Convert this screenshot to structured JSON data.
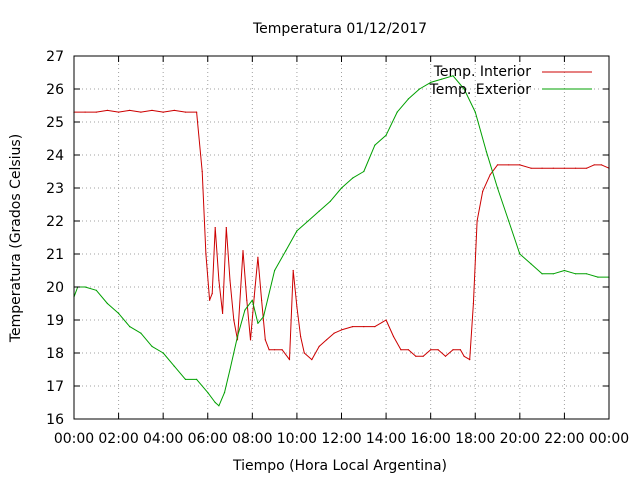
{
  "chart_data": {
    "type": "line",
    "title": "Temperatura 01/12/2017",
    "xlabel": "Tiempo (Hora Local Argentina)",
    "ylabel": "Temperatura (Grados Celsius)",
    "xlim": [
      "00:00",
      "24:00"
    ],
    "ylim": [
      16,
      27
    ],
    "x_tick_labels": [
      "00:00",
      "02:00",
      "04:00",
      "06:00",
      "08:00",
      "10:00",
      "12:00",
      "14:00",
      "16:00",
      "18:00",
      "20:00",
      "22:00",
      "00:00"
    ],
    "y_tick_labels": [
      "16",
      "17",
      "18",
      "19",
      "20",
      "21",
      "22",
      "23",
      "24",
      "25",
      "26",
      "27"
    ],
    "grid": true,
    "legend_position": "top-right",
    "colors": {
      "interior": "#cc0000",
      "exterior": "#00a000",
      "grid": "#a0a0a0"
    },
    "series": [
      {
        "name": "Temp. Interior",
        "points": [
          [
            "00:00",
            25.3
          ],
          [
            "00:30",
            25.3
          ],
          [
            "01:00",
            25.3
          ],
          [
            "01:30",
            25.35
          ],
          [
            "02:00",
            25.3
          ],
          [
            "02:30",
            25.35
          ],
          [
            "03:00",
            25.3
          ],
          [
            "03:30",
            25.35
          ],
          [
            "04:00",
            25.3
          ],
          [
            "04:30",
            25.35
          ],
          [
            "05:00",
            25.3
          ],
          [
            "05:30",
            25.3
          ],
          [
            "05:45",
            23.5
          ],
          [
            "05:55",
            21.0
          ],
          [
            "06:05",
            19.6
          ],
          [
            "06:12",
            19.8
          ],
          [
            "06:20",
            21.8
          ],
          [
            "06:30",
            20.2
          ],
          [
            "06:40",
            19.2
          ],
          [
            "06:50",
            21.8
          ],
          [
            "07:00",
            20.2
          ],
          [
            "07:10",
            19.0
          ],
          [
            "07:20",
            18.4
          ],
          [
            "07:35",
            21.1
          ],
          [
            "07:45",
            19.6
          ],
          [
            "07:55",
            18.4
          ],
          [
            "08:05",
            19.7
          ],
          [
            "08:15",
            20.9
          ],
          [
            "08:25",
            19.6
          ],
          [
            "08:35",
            18.4
          ],
          [
            "08:45",
            18.1
          ],
          [
            "09:00",
            18.1
          ],
          [
            "09:20",
            18.1
          ],
          [
            "09:40",
            17.8
          ],
          [
            "09:50",
            20.5
          ],
          [
            "10:00",
            19.4
          ],
          [
            "10:10",
            18.5
          ],
          [
            "10:20",
            18.0
          ],
          [
            "10:40",
            17.8
          ],
          [
            "11:00",
            18.2
          ],
          [
            "11:20",
            18.4
          ],
          [
            "11:40",
            18.6
          ],
          [
            "12:00",
            18.7
          ],
          [
            "12:30",
            18.8
          ],
          [
            "13:00",
            18.8
          ],
          [
            "13:30",
            18.8
          ],
          [
            "14:00",
            19.0
          ],
          [
            "14:20",
            18.5
          ],
          [
            "14:40",
            18.1
          ],
          [
            "15:00",
            18.1
          ],
          [
            "15:20",
            17.9
          ],
          [
            "15:40",
            17.9
          ],
          [
            "16:00",
            18.1
          ],
          [
            "16:20",
            18.1
          ],
          [
            "16:40",
            17.9
          ],
          [
            "17:00",
            18.1
          ],
          [
            "17:20",
            18.1
          ],
          [
            "17:30",
            17.9
          ],
          [
            "17:45",
            17.8
          ],
          [
            "17:55",
            19.5
          ],
          [
            "18:05",
            22.0
          ],
          [
            "18:20",
            22.9
          ],
          [
            "18:40",
            23.4
          ],
          [
            "19:00",
            23.7
          ],
          [
            "19:30",
            23.7
          ],
          [
            "20:00",
            23.7
          ],
          [
            "20:30",
            23.6
          ],
          [
            "21:00",
            23.6
          ],
          [
            "21:30",
            23.6
          ],
          [
            "22:00",
            23.6
          ],
          [
            "22:30",
            23.6
          ],
          [
            "23:00",
            23.6
          ],
          [
            "23:20",
            23.7
          ],
          [
            "23:40",
            23.7
          ],
          [
            "24:00",
            23.6
          ]
        ]
      },
      {
        "name": "Temp. Exterior",
        "points": [
          [
            "00:00",
            19.7
          ],
          [
            "00:10",
            20.0
          ],
          [
            "00:30",
            20.0
          ],
          [
            "01:00",
            19.9
          ],
          [
            "01:30",
            19.5
          ],
          [
            "02:00",
            19.2
          ],
          [
            "02:30",
            18.8
          ],
          [
            "03:00",
            18.6
          ],
          [
            "03:30",
            18.2
          ],
          [
            "04:00",
            18.0
          ],
          [
            "04:30",
            17.6
          ],
          [
            "05:00",
            17.2
          ],
          [
            "05:30",
            17.2
          ],
          [
            "06:00",
            16.8
          ],
          [
            "06:20",
            16.5
          ],
          [
            "06:30",
            16.4
          ],
          [
            "06:45",
            16.8
          ],
          [
            "07:00",
            17.5
          ],
          [
            "07:20",
            18.5
          ],
          [
            "07:40",
            19.3
          ],
          [
            "08:00",
            19.6
          ],
          [
            "08:15",
            18.9
          ],
          [
            "08:30",
            19.1
          ],
          [
            "09:00",
            20.5
          ],
          [
            "09:30",
            21.1
          ],
          [
            "10:00",
            21.7
          ],
          [
            "10:30",
            22.0
          ],
          [
            "11:00",
            22.3
          ],
          [
            "11:30",
            22.6
          ],
          [
            "12:00",
            23.0
          ],
          [
            "12:30",
            23.3
          ],
          [
            "13:00",
            23.5
          ],
          [
            "13:30",
            24.3
          ],
          [
            "14:00",
            24.6
          ],
          [
            "14:30",
            25.3
          ],
          [
            "15:00",
            25.7
          ],
          [
            "15:30",
            26.0
          ],
          [
            "16:00",
            26.2
          ],
          [
            "16:30",
            26.3
          ],
          [
            "17:00",
            26.4
          ],
          [
            "17:30",
            26.0
          ],
          [
            "18:00",
            25.3
          ],
          [
            "18:30",
            24.1
          ],
          [
            "19:00",
            23.0
          ],
          [
            "19:30",
            22.0
          ],
          [
            "20:00",
            21.0
          ],
          [
            "20:30",
            20.7
          ],
          [
            "21:00",
            20.4
          ],
          [
            "21:30",
            20.4
          ],
          [
            "22:00",
            20.5
          ],
          [
            "22:30",
            20.4
          ],
          [
            "23:00",
            20.4
          ],
          [
            "23:30",
            20.3
          ],
          [
            "24:00",
            20.3
          ]
        ]
      }
    ]
  }
}
